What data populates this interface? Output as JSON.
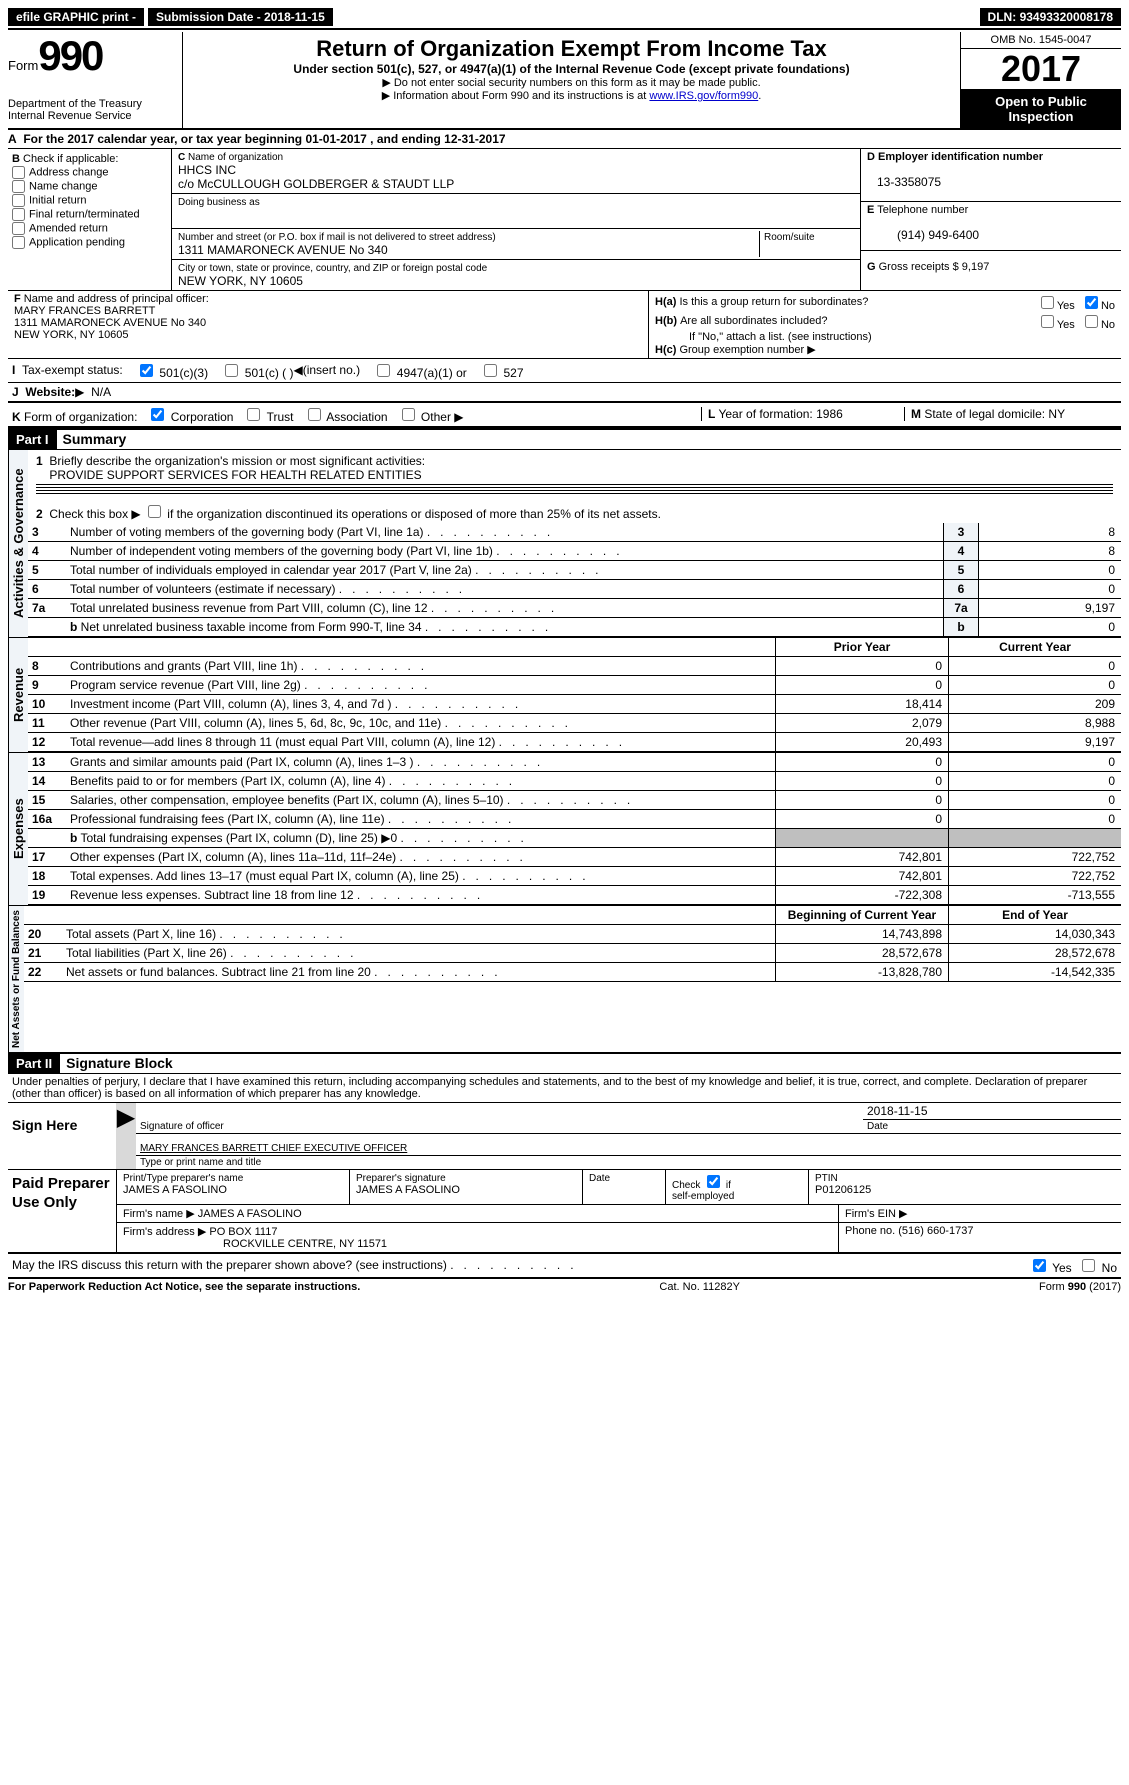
{
  "topbar": {
    "efile": "efile GRAPHIC print -",
    "sub_label": "Submission Date -",
    "sub_date": "2018-11-15",
    "dln_label": "DLN:",
    "dln": "93493320008178"
  },
  "header": {
    "form_label": "Form",
    "form_num": "990",
    "dept1": "Department of the Treasury",
    "dept2": "Internal Revenue Service",
    "main_title": "Return of Organization Exempt From Income Tax",
    "sub_title": "Under section 501(c), 527, or 4947(a)(1) of the Internal Revenue Code (except private foundations)",
    "note1": "Do not enter social security numbers on this form as it may be made public.",
    "note2": "Information about Form 990 and its instructions is at ",
    "link": "www.IRS.gov/form990",
    "omb": "OMB No. 1545-0047",
    "year": "2017",
    "inspection": "Open to Public Inspection"
  },
  "sectionA": {
    "text": "For the 2017 calendar year, or tax year beginning 01-01-2017   , and ending 12-31-2017"
  },
  "sectionB": {
    "label": "Check if applicable:",
    "items": [
      "Address change",
      "Name change",
      "Initial return",
      "Final return/terminated",
      "Amended return",
      "Application pending"
    ]
  },
  "sectionC": {
    "name_label": "Name of organization",
    "name": "HHCS INC",
    "care_of": "c/o McCULLOUGH GOLDBERGER & STAUDT LLP",
    "dba_label": "Doing business as",
    "dba": "",
    "street_label": "Number and street (or P.O. box if mail is not delivered to street address)",
    "room_label": "Room/suite",
    "street": "1311 MAMARONECK AVENUE No 340",
    "city_label": "City or town, state or province, country, and ZIP or foreign postal code",
    "city": "NEW YORK, NY  10605"
  },
  "sectionD": {
    "label": "Employer identification number",
    "ein": "13-3358075"
  },
  "sectionE": {
    "label": "Telephone number",
    "phone": "(914) 949-6400"
  },
  "sectionG": {
    "label": "Gross receipts $",
    "val": "9,197"
  },
  "sectionF": {
    "label": "Name and address of principal officer:",
    "name": "MARY FRANCES BARRETT",
    "addr1": "1311 MAMARONECK AVENUE No 340",
    "addr2": "NEW YORK, NY  10605"
  },
  "sectionH": {
    "a_label": "Is this a group return for subordinates?",
    "b_label": "Are all subordinates included?",
    "b_note": "If \"No,\" attach a list. (see instructions)",
    "c_label": "Group exemption number",
    "yes": "Yes",
    "no": "No"
  },
  "sectionI": {
    "label": "Tax-exempt status:",
    "opts": [
      "501(c)(3)",
      "501(c) (  )",
      "(insert no.)",
      "4947(a)(1) or",
      "527"
    ]
  },
  "sectionJ": {
    "label": "Website:",
    "val": "N/A"
  },
  "sectionK": {
    "label": "Form of organization:",
    "opts": [
      "Corporation",
      "Trust",
      "Association",
      "Other"
    ]
  },
  "sectionL": {
    "label": "Year of formation:",
    "val": "1986"
  },
  "sectionM": {
    "label": "State of legal domicile:",
    "val": "NY"
  },
  "part1": {
    "header": "Part I",
    "title": "Summary"
  },
  "summary": {
    "line1_label": "Briefly describe the organization's mission or most significant activities:",
    "line1_val": "PROVIDE SUPPORT SERVICES FOR HEALTH RELATED ENTITIES",
    "line2": "Check this box ▶     if the organization discontinued its operations or disposed of more than 25% of its net assets.",
    "rows_small": [
      {
        "n": "3",
        "desc": "Number of voting members of the governing body (Part VI, line 1a)",
        "val": "8"
      },
      {
        "n": "4",
        "desc": "Number of independent voting members of the governing body (Part VI, line 1b)",
        "val": "8"
      },
      {
        "n": "5",
        "desc": "Total number of individuals employed in calendar year 2017 (Part V, line 2a)",
        "val": "0"
      },
      {
        "n": "6",
        "desc": "Total number of volunteers (estimate if necessary)",
        "val": "0"
      },
      {
        "n": "7a",
        "desc": "Total unrelated business revenue from Part VIII, column (C), line 12",
        "val": "9,197"
      },
      {
        "n": "b",
        "sub": true,
        "desc": "Net unrelated business taxable income from Form 990-T, line 34",
        "val": "0"
      }
    ],
    "prior_year": "Prior Year",
    "current_year": "Current Year",
    "revenue_rows": [
      {
        "n": "8",
        "desc": "Contributions and grants (Part VIII, line 1h)",
        "py": "0",
        "cy": "0"
      },
      {
        "n": "9",
        "desc": "Program service revenue (Part VIII, line 2g)",
        "py": "0",
        "cy": "0"
      },
      {
        "n": "10",
        "desc": "Investment income (Part VIII, column (A), lines 3, 4, and 7d )",
        "py": "18,414",
        "cy": "209"
      },
      {
        "n": "11",
        "desc": "Other revenue (Part VIII, column (A), lines 5, 6d, 8c, 9c, 10c, and 11e)",
        "py": "2,079",
        "cy": "8,988"
      },
      {
        "n": "12",
        "desc": "Total revenue—add lines 8 through 11 (must equal Part VIII, column (A), line 12)",
        "py": "20,493",
        "cy": "9,197"
      }
    ],
    "expense_rows": [
      {
        "n": "13",
        "desc": "Grants and similar amounts paid (Part IX, column (A), lines 1–3 )",
        "py": "0",
        "cy": "0"
      },
      {
        "n": "14",
        "desc": "Benefits paid to or for members (Part IX, column (A), line 4)",
        "py": "0",
        "cy": "0"
      },
      {
        "n": "15",
        "desc": "Salaries, other compensation, employee benefits (Part IX, column (A), lines 5–10)",
        "py": "0",
        "cy": "0"
      },
      {
        "n": "16a",
        "desc": "Professional fundraising fees (Part IX, column (A), line 11e)",
        "py": "0",
        "cy": "0"
      },
      {
        "n": "b",
        "sub": true,
        "desc": "Total fundraising expenses (Part IX, column (D), line 25) ▶0",
        "py": "gray",
        "cy": "gray"
      },
      {
        "n": "17",
        "desc": "Other expenses (Part IX, column (A), lines 11a–11d, 11f–24e)",
        "py": "742,801",
        "cy": "722,752"
      },
      {
        "n": "18",
        "desc": "Total expenses. Add lines 13–17 (must equal Part IX, column (A), line 25)",
        "py": "742,801",
        "cy": "722,752"
      },
      {
        "n": "19",
        "desc": "Revenue less expenses. Subtract line 18 from line 12",
        "py": "-722,308",
        "cy": "-713,555"
      }
    ],
    "begin_year": "Beginning of Current Year",
    "end_year": "End of Year",
    "net_rows": [
      {
        "n": "20",
        "desc": "Total assets (Part X, line 16)",
        "py": "14,743,898",
        "cy": "14,030,343"
      },
      {
        "n": "21",
        "desc": "Total liabilities (Part X, line 26)",
        "py": "28,572,678",
        "cy": "28,572,678"
      },
      {
        "n": "22",
        "desc": "Net assets or fund balances. Subtract line 21 from line 20",
        "py": "-13,828,780",
        "cy": "-14,542,335"
      }
    ],
    "vert_labels": {
      "gov": "Activities & Governance",
      "rev": "Revenue",
      "exp": "Expenses",
      "net": "Net Assets or Fund Balances"
    }
  },
  "part2": {
    "header": "Part II",
    "title": "Signature Block",
    "penalty": "Under penalties of perjury, I declare that I have examined this return, including accompanying schedules and statements, and to the best of my knowledge and belief, it is true, correct, and complete. Declaration of preparer (other than officer) is based on all information of which preparer has any knowledge.",
    "sign_here": "Sign Here",
    "sig_date": "2018-11-15",
    "sig_officer_label": "Signature of officer",
    "date_label": "Date",
    "officer_name": "MARY FRANCES BARRETT CHIEF EXECUTIVE OFFICER",
    "type_label": "Type or print name and title"
  },
  "preparer": {
    "label": "Paid Preparer Use Only",
    "print_label": "Print/Type preparer's name",
    "print_name": "JAMES A FASOLINO",
    "sig_label": "Preparer's signature",
    "sig_name": "JAMES A FASOLINO",
    "date_label": "Date",
    "check_label": "Check",
    "self_emp": "self-employed",
    "if": "if",
    "ptin_label": "PTIN",
    "ptin": "P01206125",
    "firm_name_label": "Firm's name    ▶",
    "firm_name": "JAMES A FASOLINO",
    "firm_ein_label": "Firm's EIN ▶",
    "firm_addr_label": "Firm's address ▶",
    "firm_addr1": "PO BOX 1117",
    "firm_addr2": "ROCKVILLE CENTRE, NY  11571",
    "phone_label": "Phone no.",
    "phone": "(516) 660-1737"
  },
  "discuss": {
    "text": "May the IRS discuss this return with the preparer shown above? (see instructions)",
    "yes": "Yes",
    "no": "No"
  },
  "footer": {
    "left": "For Paperwork Reduction Act Notice, see the separate instructions.",
    "mid": "Cat. No. 11282Y",
    "right": "Form 990 (2017)"
  }
}
